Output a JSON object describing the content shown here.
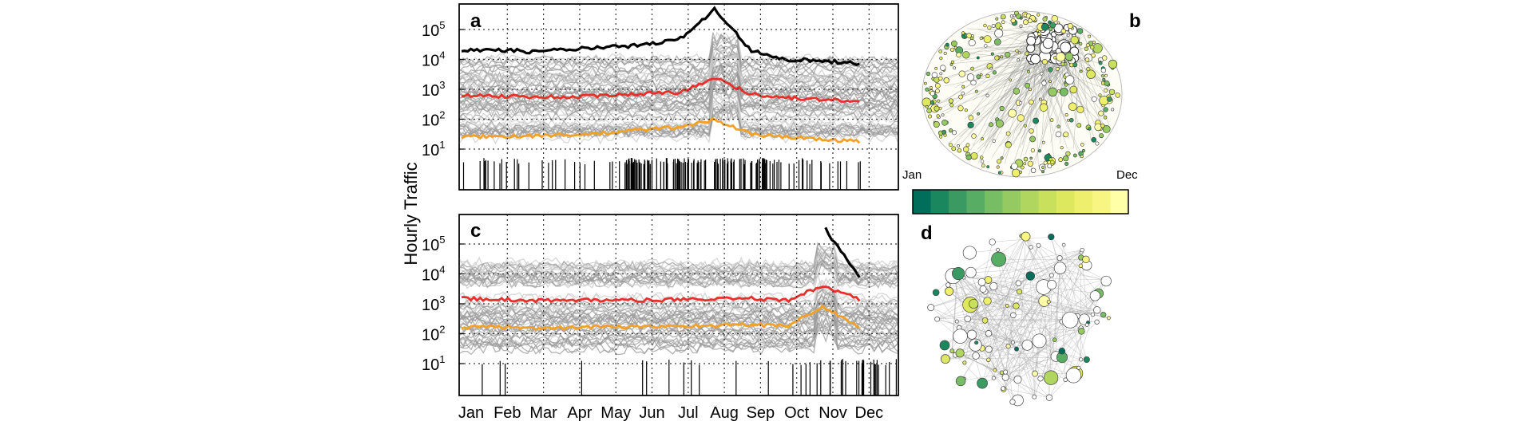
{
  "figure": {
    "ylabel": "Hourly Traffic",
    "months": [
      "Jan",
      "Feb",
      "Mar",
      "Apr",
      "May",
      "Jun",
      "Jul",
      "Aug",
      "Sep",
      "Oct",
      "Nov",
      "Dec"
    ],
    "colorbar": {
      "start_label": "Jan",
      "end_label": "Dec",
      "colors": [
        "#006e5a",
        "#1b875f",
        "#3a9a62",
        "#58ad65",
        "#76bd64",
        "#94ca61",
        "#b0d65f",
        "#c9e05d",
        "#dee85f",
        "#eeef6c",
        "#f9f583",
        "#ffffa8"
      ]
    },
    "panels": [
      {
        "letter": "a"
      },
      {
        "letter": "b"
      },
      {
        "letter": "c"
      },
      {
        "letter": "d"
      }
    ]
  },
  "chart_data": [
    {
      "panel": "a",
      "type": "line",
      "yscale": "log",
      "ylim": [
        1,
        700000
      ],
      "yticks": [
        {
          "base": "10",
          "exp": "5"
        },
        {
          "base": "10",
          "exp": "4"
        },
        {
          "base": "10",
          "exp": "3"
        },
        {
          "base": "10",
          "exp": "2"
        },
        {
          "base": "10",
          "exp": "1"
        }
      ],
      "x_months": [
        "Jan",
        "Feb",
        "Mar",
        "Apr",
        "May",
        "Jun",
        "Jul",
        "Aug",
        "Sep",
        "Oct",
        "Nov",
        "Dec"
      ],
      "series": [
        {
          "color": "#000000",
          "values": [
            20000,
            21000,
            18000,
            22000,
            25000,
            30000,
            45000,
            470000,
            20000,
            10000,
            9000,
            7000
          ]
        },
        {
          "color": "#e8302b",
          "values": [
            650,
            600,
            560,
            550,
            620,
            720,
            800,
            2400,
            700,
            520,
            450,
            400
          ]
        },
        {
          "color": "#f2a126",
          "values": [
            25,
            27,
            28,
            30,
            34,
            45,
            55,
            95,
            32,
            25,
            21,
            18
          ]
        }
      ],
      "grid": true
    },
    {
      "panel": "c",
      "type": "line",
      "yscale": "log",
      "ylim": [
        1,
        700000
      ],
      "yticks": [
        {
          "base": "10",
          "exp": "5"
        },
        {
          "base": "10",
          "exp": "4"
        },
        {
          "base": "10",
          "exp": "3"
        },
        {
          "base": "10",
          "exp": "2"
        },
        {
          "base": "10",
          "exp": "1"
        }
      ],
      "x_months": [
        "Jan",
        "Feb",
        "Mar",
        "Apr",
        "May",
        "Jun",
        "Jul",
        "Aug",
        "Sep",
        "Oct",
        "Nov",
        "Dec"
      ],
      "series": [
        {
          "color": "#000000",
          "values": [
            null,
            null,
            null,
            null,
            null,
            null,
            null,
            null,
            null,
            null,
            400000,
            7000
          ]
        },
        {
          "color": "#e8302b",
          "values": [
            1500,
            1400,
            1300,
            1300,
            1350,
            1300,
            1400,
            1400,
            1500,
            1300,
            4000,
            1400
          ]
        },
        {
          "color": "#f2a126",
          "values": [
            160,
            170,
            150,
            160,
            170,
            170,
            180,
            190,
            200,
            180,
            800,
            170
          ]
        }
      ],
      "grid": true
    }
  ]
}
